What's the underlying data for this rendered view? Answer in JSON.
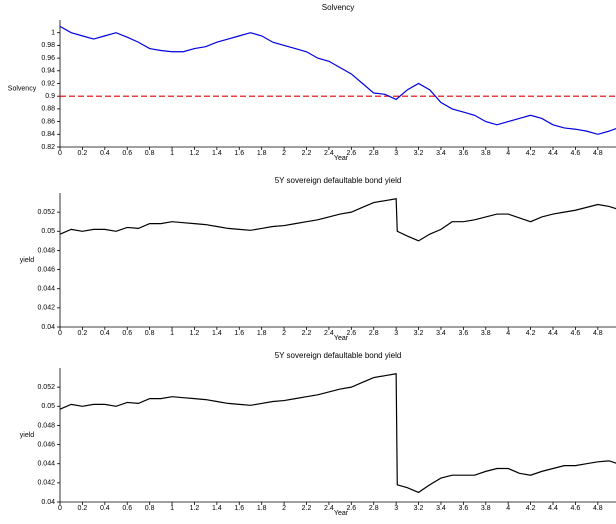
{
  "chart_data": [
    {
      "type": "line",
      "title": "Solvency",
      "xlabel": "Year",
      "ylabel": "Solvency",
      "color": "#0000e0",
      "x": [
        0,
        0.1,
        0.2,
        0.3,
        0.4,
        0.5,
        0.6,
        0.7,
        0.8,
        0.9,
        1,
        1.1,
        1.2,
        1.3,
        1.4,
        1.5,
        1.6,
        1.7,
        1.8,
        1.9,
        2,
        2.1,
        2.2,
        2.3,
        2.4,
        2.5,
        2.6,
        2.7,
        2.8,
        2.9,
        3,
        3.1,
        3.2,
        3.3,
        3.4,
        3.5,
        3.6,
        3.7,
        3.8,
        3.9,
        4,
        4.1,
        4.2,
        4.3,
        4.4,
        4.5,
        4.6,
        4.7,
        4.8,
        4.9,
        4.98
      ],
      "values": [
        1.01,
        1.0,
        0.995,
        0.99,
        0.995,
        1.0,
        0.993,
        0.985,
        0.975,
        0.972,
        0.97,
        0.97,
        0.975,
        0.978,
        0.985,
        0.99,
        0.995,
        1.0,
        0.995,
        0.985,
        0.98,
        0.975,
        0.97,
        0.96,
        0.955,
        0.945,
        0.935,
        0.92,
        0.905,
        0.903,
        0.895,
        0.91,
        0.92,
        0.91,
        0.89,
        0.88,
        0.875,
        0.87,
        0.86,
        0.855,
        0.86,
        0.865,
        0.87,
        0.865,
        0.855,
        0.85,
        0.848,
        0.845,
        0.84,
        0.845,
        0.85
      ],
      "hline": {
        "value": 0.9,
        "color": "#e00000",
        "style": "dashed"
      },
      "xlim": [
        0,
        4.98
      ],
      "xticks": [
        0,
        0.2,
        0.4,
        0.6,
        0.8,
        1,
        1.2,
        1.4,
        1.6,
        1.8,
        2,
        2.2,
        2.4,
        2.6,
        2.8,
        3,
        3.2,
        3.4,
        3.6,
        3.8,
        4,
        4.2,
        4.4,
        4.6,
        4.8
      ],
      "ylim": [
        0.82,
        1.02
      ],
      "yticks": [
        0.82,
        0.84,
        0.86,
        0.88,
        0.9,
        0.92,
        0.94,
        0.96,
        0.98,
        1
      ]
    },
    {
      "type": "line",
      "title": "5Y sovereign defaultable bond yield",
      "xlabel": "Year",
      "ylabel": "yield",
      "color": "#000000",
      "x": [
        0,
        0.1,
        0.2,
        0.3,
        0.4,
        0.5,
        0.6,
        0.7,
        0.8,
        0.9,
        1,
        1.1,
        1.2,
        1.3,
        1.4,
        1.5,
        1.6,
        1.7,
        1.8,
        1.9,
        2,
        2.1,
        2.2,
        2.3,
        2.4,
        2.5,
        2.6,
        2.7,
        2.8,
        2.9,
        3,
        3.01,
        3.1,
        3.2,
        3.3,
        3.4,
        3.5,
        3.6,
        3.7,
        3.8,
        3.9,
        4,
        4.1,
        4.2,
        4.3,
        4.4,
        4.5,
        4.6,
        4.7,
        4.8,
        4.9,
        4.98
      ],
      "values": [
        0.0497,
        0.0502,
        0.05,
        0.0502,
        0.0502,
        0.05,
        0.0504,
        0.0503,
        0.0508,
        0.0508,
        0.051,
        0.0509,
        0.0508,
        0.0507,
        0.0505,
        0.0503,
        0.0502,
        0.0501,
        0.0503,
        0.0505,
        0.0506,
        0.0508,
        0.051,
        0.0512,
        0.0515,
        0.0518,
        0.052,
        0.0525,
        0.053,
        0.0532,
        0.0534,
        0.05,
        0.0495,
        0.049,
        0.0497,
        0.0502,
        0.051,
        0.051,
        0.0512,
        0.0515,
        0.0518,
        0.0518,
        0.0514,
        0.051,
        0.0515,
        0.0518,
        0.052,
        0.0522,
        0.0525,
        0.0528,
        0.0526,
        0.0523
      ],
      "xlim": [
        0,
        4.98
      ],
      "xticks": [
        0,
        0.2,
        0.4,
        0.6,
        0.8,
        1,
        1.2,
        1.4,
        1.6,
        1.8,
        2,
        2.2,
        2.4,
        2.6,
        2.8,
        3,
        3.2,
        3.4,
        3.6,
        3.8,
        4,
        4.2,
        4.4,
        4.6,
        4.8
      ],
      "ylim": [
        0.04,
        0.054
      ],
      "yticks": [
        0.04,
        0.042,
        0.044,
        0.046,
        0.048,
        0.05,
        0.052
      ]
    },
    {
      "type": "line",
      "title": "5Y sovereign defaultable bond yield",
      "xlabel": "Year",
      "ylabel": "yield",
      "color": "#000000",
      "x": [
        0,
        0.1,
        0.2,
        0.3,
        0.4,
        0.5,
        0.6,
        0.7,
        0.8,
        0.9,
        1,
        1.1,
        1.2,
        1.3,
        1.4,
        1.5,
        1.6,
        1.7,
        1.8,
        1.9,
        2,
        2.1,
        2.2,
        2.3,
        2.4,
        2.5,
        2.6,
        2.7,
        2.8,
        2.9,
        3,
        3.01,
        3.1,
        3.2,
        3.3,
        3.4,
        3.5,
        3.6,
        3.7,
        3.8,
        3.9,
        4,
        4.1,
        4.2,
        4.3,
        4.4,
        4.5,
        4.6,
        4.7,
        4.8,
        4.9,
        4.98
      ],
      "values": [
        0.0497,
        0.0502,
        0.05,
        0.0502,
        0.0502,
        0.05,
        0.0504,
        0.0503,
        0.0508,
        0.0508,
        0.051,
        0.0509,
        0.0508,
        0.0507,
        0.0505,
        0.0503,
        0.0502,
        0.0501,
        0.0503,
        0.0505,
        0.0506,
        0.0508,
        0.051,
        0.0512,
        0.0515,
        0.0518,
        0.052,
        0.0525,
        0.053,
        0.0532,
        0.0534,
        0.0418,
        0.0415,
        0.041,
        0.0418,
        0.0425,
        0.0428,
        0.0428,
        0.0428,
        0.0432,
        0.0435,
        0.0435,
        0.043,
        0.0428,
        0.0432,
        0.0435,
        0.0438,
        0.0438,
        0.044,
        0.0442,
        0.0443,
        0.044
      ],
      "xlim": [
        0,
        4.98
      ],
      "xticks": [
        0,
        0.2,
        0.4,
        0.6,
        0.8,
        1,
        1.2,
        1.4,
        1.6,
        1.8,
        2,
        2.2,
        2.4,
        2.6,
        2.8,
        3,
        3.2,
        3.4,
        3.6,
        3.8,
        4,
        4.2,
        4.4,
        4.6,
        4.8
      ],
      "ylim": [
        0.04,
        0.054
      ],
      "yticks": [
        0.04,
        0.042,
        0.044,
        0.046,
        0.048,
        0.05,
        0.052
      ]
    }
  ]
}
